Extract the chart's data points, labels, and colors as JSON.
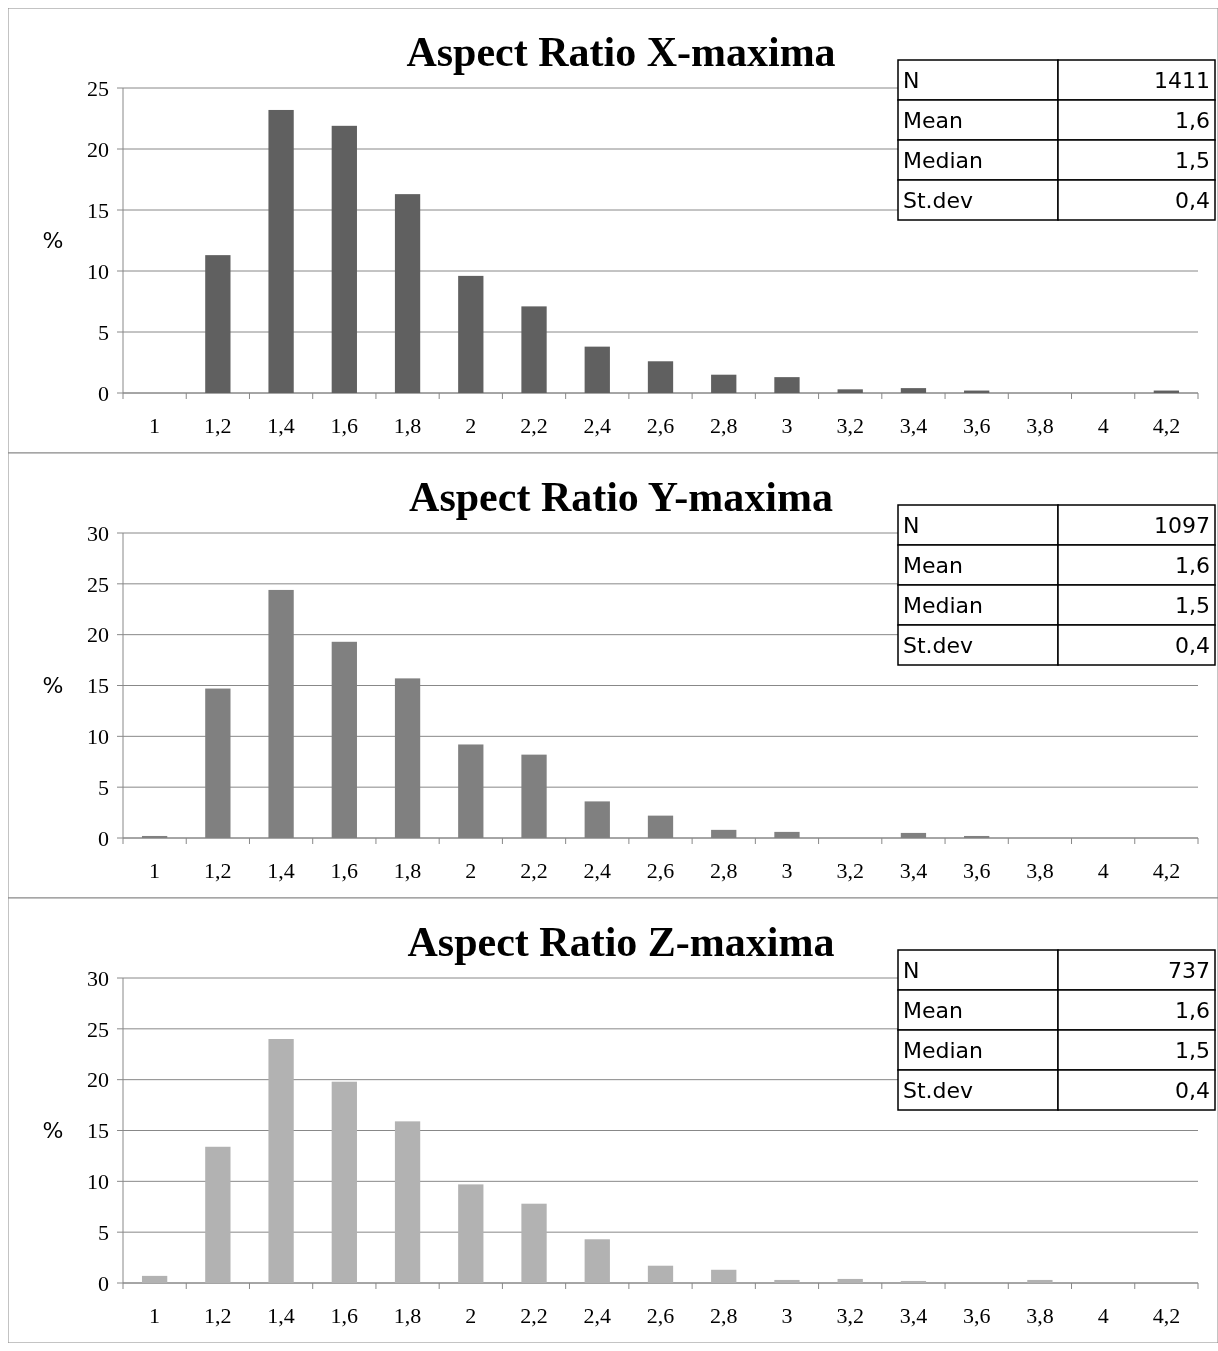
{
  "chart_data": [
    {
      "type": "bar",
      "title": "Aspect Ratio X-maxima",
      "ylabel": "%",
      "categories": [
        "1",
        "1,2",
        "1,4",
        "1,6",
        "1,8",
        "2",
        "2,2",
        "2,4",
        "2,6",
        "2,8",
        "3",
        "3,2",
        "3,4",
        "3,6",
        "3,8",
        "4",
        "4,2"
      ],
      "series": [
        {
          "color": "#606060",
          "values": [
            0,
            11.3,
            23.2,
            21.9,
            16.3,
            9.6,
            7.1,
            3.8,
            2.6,
            1.5,
            1.3,
            0.3,
            0.4,
            0.2,
            0,
            0,
            0.2
          ]
        }
      ],
      "ylim": [
        0,
        25
      ],
      "yticks": [
        0,
        5,
        10,
        15,
        20,
        25
      ],
      "grid": "y",
      "annotations": [
        "N",
        "1411",
        "Mean",
        "1,6",
        "Median",
        "1,5",
        "St.dev",
        "0,4"
      ]
    },
    {
      "type": "bar",
      "title": "Aspect Ratio Y-maxima",
      "ylabel": "%",
      "categories": [
        "1",
        "1,2",
        "1,4",
        "1,6",
        "1,8",
        "2",
        "2,2",
        "2,4",
        "2,6",
        "2,8",
        "3",
        "3,2",
        "3,4",
        "3,6",
        "3,8",
        "4",
        "4,2"
      ],
      "series": [
        {
          "color": "#808080",
          "values": [
            0.2,
            14.7,
            24.4,
            19.3,
            15.7,
            9.2,
            8.2,
            3.6,
            2.2,
            0.8,
            0.6,
            0,
            0.5,
            0.2,
            0,
            0,
            0
          ]
        }
      ],
      "ylim": [
        0,
        30
      ],
      "yticks": [
        0,
        5,
        10,
        15,
        20,
        25,
        30
      ],
      "grid": "y",
      "annotations": [
        "N",
        "1097",
        "Mean",
        "1,6",
        "Median",
        "1,5",
        "St.dev",
        "0,4"
      ]
    },
    {
      "type": "bar",
      "title": "Aspect Ratio Z-maxima",
      "ylabel": "%",
      "categories": [
        "1",
        "1,2",
        "1,4",
        "1,6",
        "1,8",
        "2",
        "2,2",
        "2,4",
        "2,6",
        "2,8",
        "3",
        "3,2",
        "3,4",
        "3,6",
        "3,8",
        "4",
        "4,2"
      ],
      "series": [
        {
          "color": "#b2b2b2",
          "values": [
            0.7,
            13.4,
            24.0,
            19.8,
            15.9,
            9.7,
            7.8,
            4.3,
            1.7,
            1.3,
            0.3,
            0.4,
            0.2,
            0,
            0.3,
            0,
            0
          ]
        }
      ],
      "ylim": [
        0,
        30
      ],
      "yticks": [
        0,
        5,
        10,
        15,
        20,
        25,
        30
      ],
      "grid": "y",
      "annotations": [
        "N",
        "737",
        "Mean",
        "1,6",
        "Median",
        "1,5",
        "St.dev",
        "0,4"
      ]
    }
  ]
}
